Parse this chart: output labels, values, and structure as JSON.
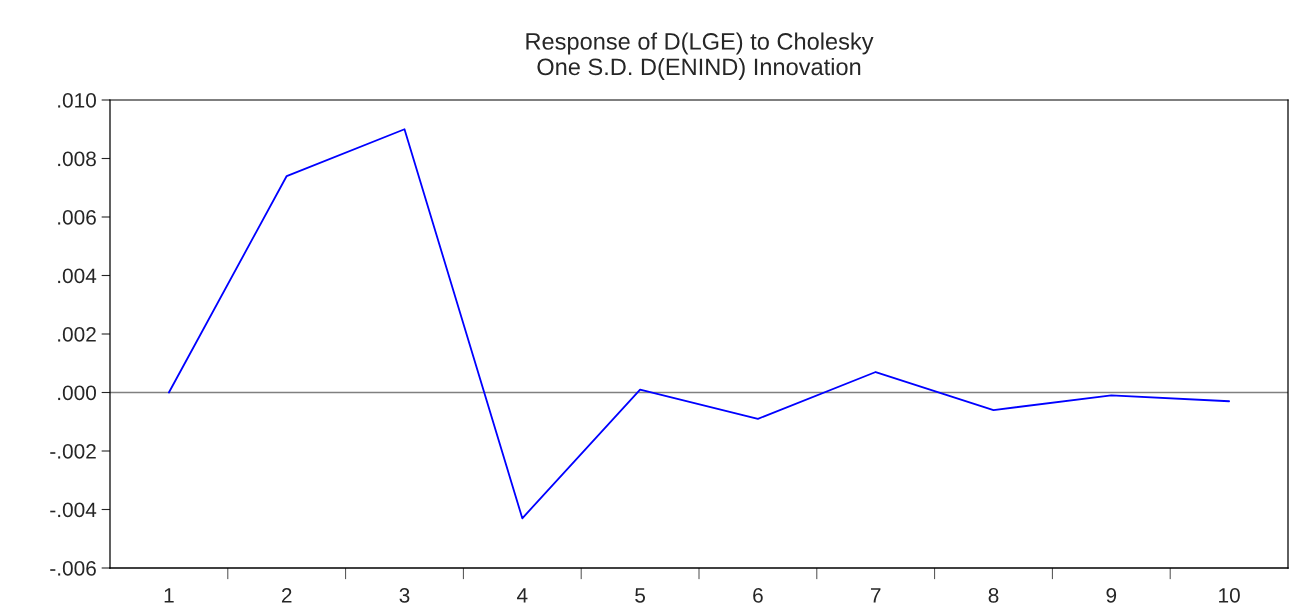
{
  "chart_data": {
    "type": "line",
    "title": "Response of D(LGE) to Cholesky\nOne S.D. D(ENIND) Innovation",
    "categories": [
      "1",
      "2",
      "3",
      "4",
      "5",
      "6",
      "7",
      "8",
      "9",
      "10"
    ],
    "series": [
      {
        "color": "#0000ff",
        "values": [
          0.0,
          0.0074,
          0.009,
          -0.0043,
          0.0001,
          -0.0009,
          0.0007,
          -0.0006,
          -0.0001,
          -0.0003
        ]
      }
    ],
    "ylim": [
      -0.006,
      0.01
    ],
    "yticks": [
      {
        "value": -0.006,
        "label": "-.006"
      },
      {
        "value": -0.004,
        "label": "-.004"
      },
      {
        "value": -0.002,
        "label": "-.002"
      },
      {
        "value": 0.0,
        "label": ".000"
      },
      {
        "value": 0.002,
        "label": ".002"
      },
      {
        "value": 0.004,
        "label": ".004"
      },
      {
        "value": 0.006,
        "label": ".006"
      },
      {
        "value": 0.008,
        "label": ".008"
      },
      {
        "value": 0.01,
        "label": ".010"
      }
    ],
    "ref_lines": [
      {
        "axis": "y",
        "value": 0.0,
        "color": "#808080"
      }
    ],
    "grid": false,
    "marker": "none",
    "line_style": "solid"
  }
}
